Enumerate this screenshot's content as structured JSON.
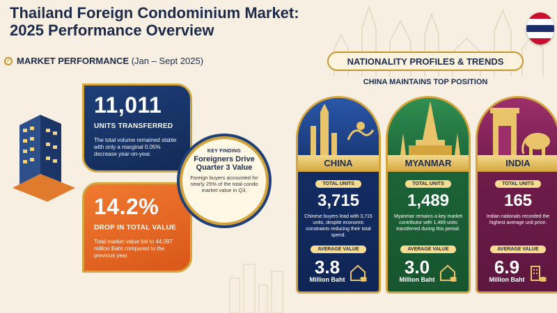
{
  "header": {
    "title_line1": "Thailand Foreign Condominium Market:",
    "title_line2": "2025 Performance Overview"
  },
  "market_performance": {
    "title": "MARKET PERFORMANCE",
    "period": "(Jan – Sept 2025)"
  },
  "units_card": {
    "value": "11,011",
    "label": "UNITS TRANSFERRED",
    "description": "The total volume remained stable with only a marginal 0.05% decrease year-on-year."
  },
  "value_card": {
    "value": "14.2%",
    "label": "DROP IN TOTAL VALUE",
    "description": "Total market value fell to 44,097 million Baht compared to the previous year."
  },
  "key_finding": {
    "tag": "KEY FINDING",
    "headline": "Foreigners Drive Quarter 3 Value",
    "body": "Foreign buyers accounted for nearly 25% of the total condo market value in Q3."
  },
  "nationality": {
    "banner": "NATIONALITY PROFILES & TRENDS",
    "subtitle": "CHINA MAINTAINS TOP POSITION",
    "countries": [
      {
        "name": "CHINA",
        "units_label": "TOTAL UNITS",
        "units": "3,715",
        "description": "Chinese buyers lead with 3,715 units, despite economic constraints reducing their total spend.",
        "avg_label": "AVERAGE VALUE",
        "avg_value": "3.8",
        "avg_unit": "Million Baht",
        "icon": "house-coins-icon"
      },
      {
        "name": "MYANMAR",
        "units_label": "TOTAL UNITS",
        "units": "1,489",
        "description": "Myanmar remains a key market contributor with 1,489 units transferred during this period.",
        "avg_label": "AVERAGE VALUE",
        "avg_value": "3.0",
        "avg_unit": "Million Baht",
        "icon": "house-coins-icon"
      },
      {
        "name": "INDIA",
        "units_label": "TOTAL UNITS",
        "units": "165",
        "description": "Indian nationals recorded the highest average unit price.",
        "avg_label": "AVERAGE VALUE",
        "avg_value": "6.9",
        "avg_unit": "Million Baht",
        "icon": "building-coins-icon"
      }
    ]
  },
  "colors": {
    "navy": "#1c2a4a",
    "gold": "#d4a53c",
    "orange": "#e8692a",
    "china": "#14306a",
    "myanmar": "#1f6b3c",
    "india": "#7a1f52"
  }
}
